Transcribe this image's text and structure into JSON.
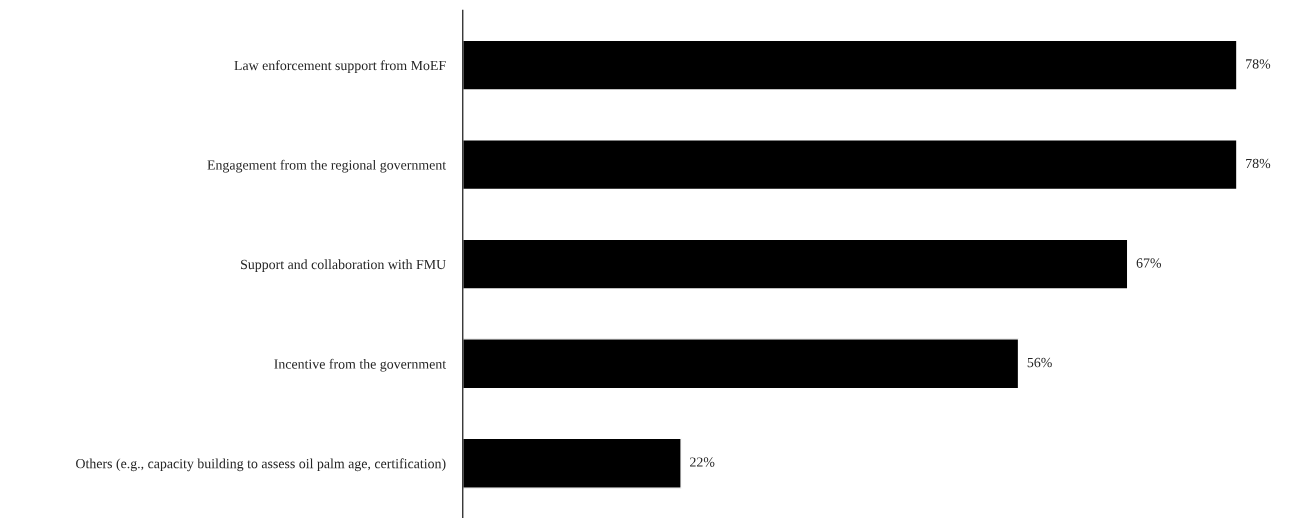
{
  "chart_data": {
    "type": "bar",
    "orientation": "horizontal",
    "categories": [
      "Law enforcement support from MoEF",
      "Engagement from the regional government",
      "Support and collaboration with FMU",
      "Incentive from the government",
      "Others (e.g., capacity building to assess oil palm age, certification)"
    ],
    "values": [
      78,
      78,
      67,
      56,
      22
    ],
    "value_labels": [
      "78%",
      "78%",
      "67%",
      "56%",
      "22%"
    ],
    "color": "#000000",
    "grid": false,
    "legend": false,
    "tick_labels": "y"
  }
}
